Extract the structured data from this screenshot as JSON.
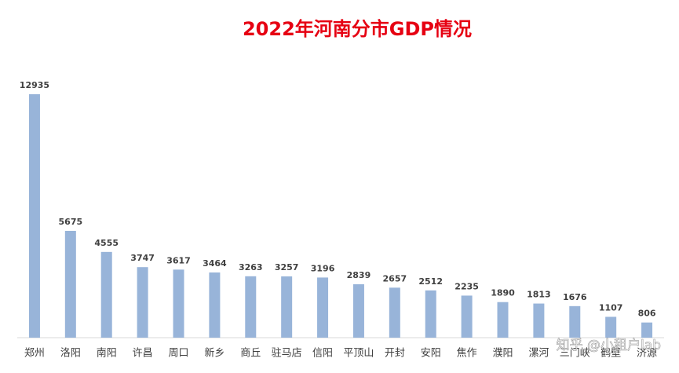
{
  "chart_data": {
    "type": "bar",
    "title": "2022年河南分市GDP情况",
    "categories": [
      "郑州",
      "洛阳",
      "南阳",
      "许昌",
      "周口",
      "新乡",
      "商丘",
      "驻马店",
      "信阳",
      "平顶山",
      "开封",
      "安阳",
      "焦作",
      "濮阳",
      "漯河",
      "三门峡",
      "鹤壁",
      "济源"
    ],
    "values": [
      12935,
      5675,
      4555,
      3747,
      3617,
      3464,
      3263,
      3257,
      3196,
      2839,
      2657,
      2512,
      2235,
      1890,
      1813,
      1676,
      1107,
      806
    ],
    "color": "#98b4d9",
    "data_labels": true,
    "watermark": "知乎 @小租户lab"
  }
}
